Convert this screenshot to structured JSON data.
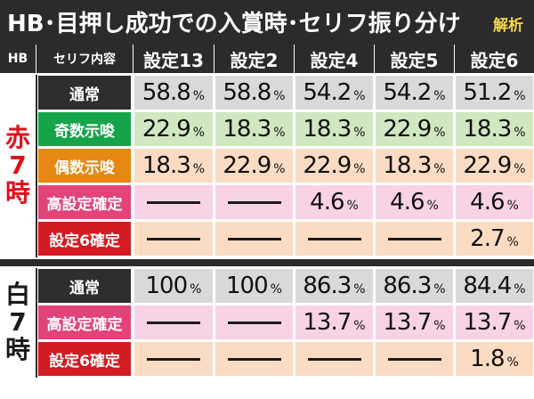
{
  "title": "HB･目押し成功での入賞時･セリフ振り分け",
  "badge": "解析",
  "header": {
    "hb": "HB",
    "col": "セリフ内容",
    "settings": [
      "設定13",
      "設定2",
      "設定4",
      "設定5",
      "設定6"
    ]
  },
  "groups": [
    {
      "side": "赤7時",
      "chars": [
        "赤",
        "7",
        "時"
      ],
      "rows": [
        {
          "label": "通常",
          "kind": "common",
          "values": [
            "58.8",
            "58.8",
            "54.2",
            "54.2",
            "51.2"
          ]
        },
        {
          "label": "奇数示唆",
          "kind": "odd",
          "values": [
            "22.9",
            "18.3",
            "18.3",
            "22.9",
            "18.3"
          ]
        },
        {
          "label": "偶数示唆",
          "kind": "even",
          "values": [
            "18.3",
            "22.9",
            "22.9",
            "18.3",
            "22.9"
          ]
        },
        {
          "label": "高設定確定",
          "kind": "high",
          "values": [
            "",
            "",
            "4.6",
            "4.6",
            "4.6"
          ]
        },
        {
          "label": "設定6確定",
          "kind": "six",
          "values": [
            "",
            "",
            "",
            "",
            "2.7"
          ]
        }
      ]
    },
    {
      "side": "白7時",
      "chars": [
        "白",
        "7",
        "時"
      ],
      "rows": [
        {
          "label": "通常",
          "kind": "common",
          "values": [
            "100",
            "100",
            "86.3",
            "86.3",
            "84.4"
          ]
        },
        {
          "label": "高設定確定",
          "kind": "high",
          "values": [
            "",
            "",
            "13.7",
            "13.7",
            "13.7"
          ]
        },
        {
          "label": "設定6確定",
          "kind": "six",
          "values": [
            "",
            "",
            "",
            "",
            "1.8"
          ]
        }
      ]
    }
  ],
  "percent": "%"
}
